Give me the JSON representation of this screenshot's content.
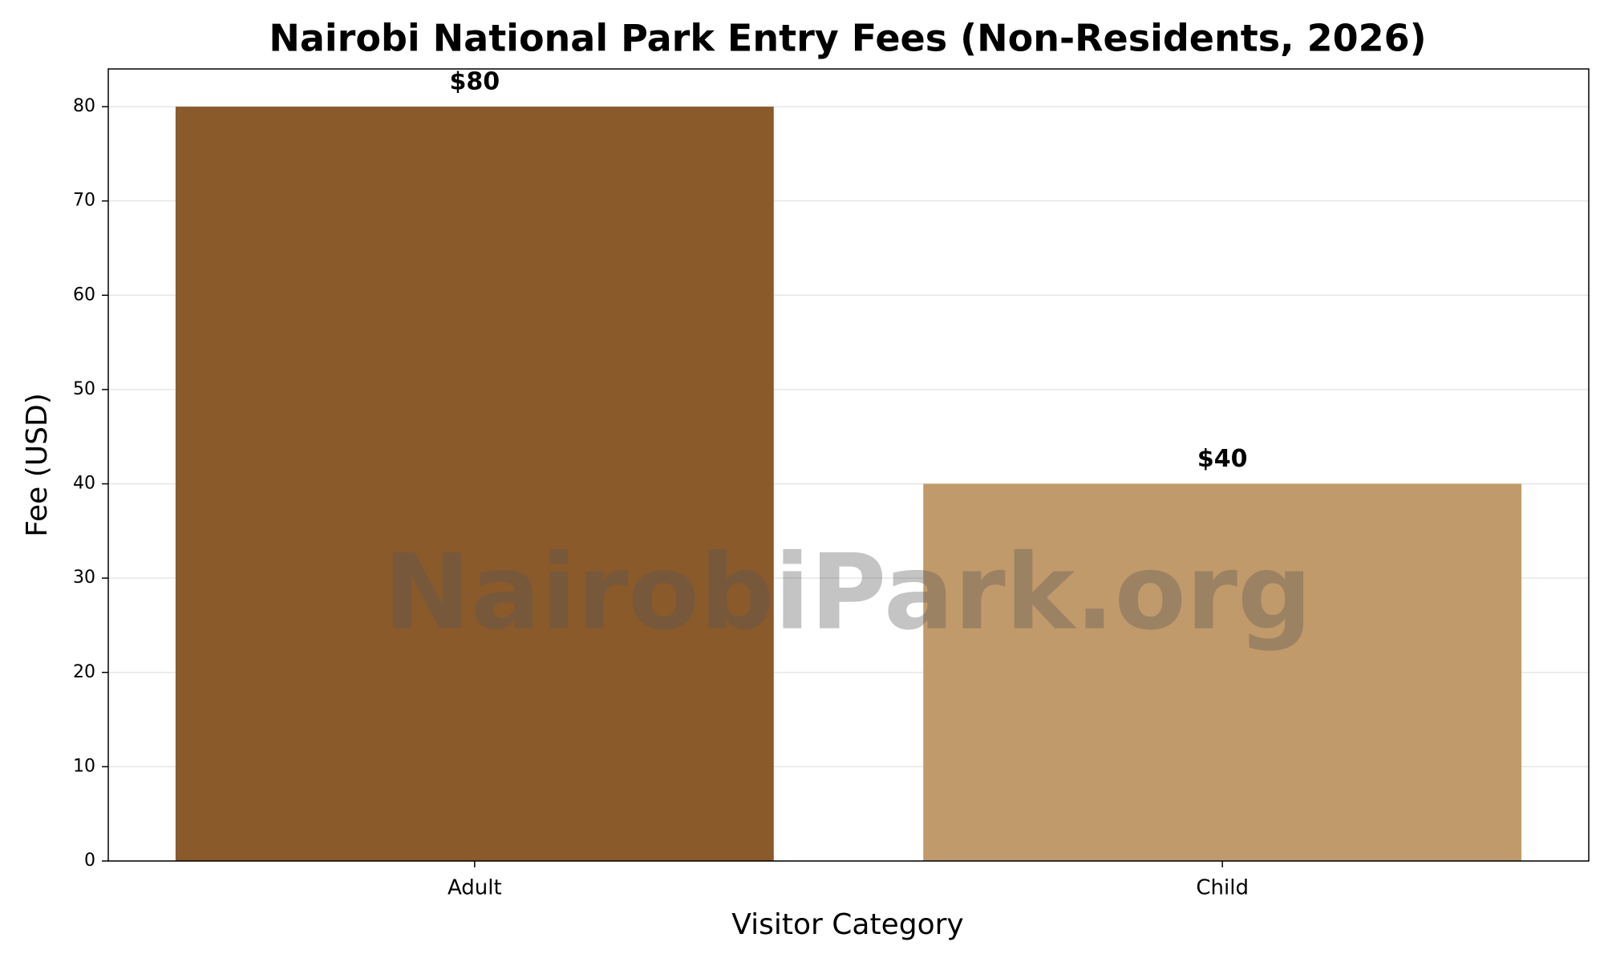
{
  "chart_data": {
    "type": "bar",
    "title": "Nairobi National Park Entry Fees (Non-Residents, 2026)",
    "x_label": "Visitor Category",
    "y_label": "Fee (USD)",
    "watermark": "NairobiPark.org",
    "categories": [
      "Adult",
      "Child"
    ],
    "values": [
      80,
      40
    ],
    "value_labels": [
      "$80",
      "$40"
    ],
    "colors": [
      "#8b5a2b",
      "#c19a6b"
    ],
    "ylim": [
      0,
      84
    ],
    "yticks": [
      0,
      10,
      20,
      30,
      40,
      50,
      60,
      70,
      80
    ],
    "grid": true
  }
}
